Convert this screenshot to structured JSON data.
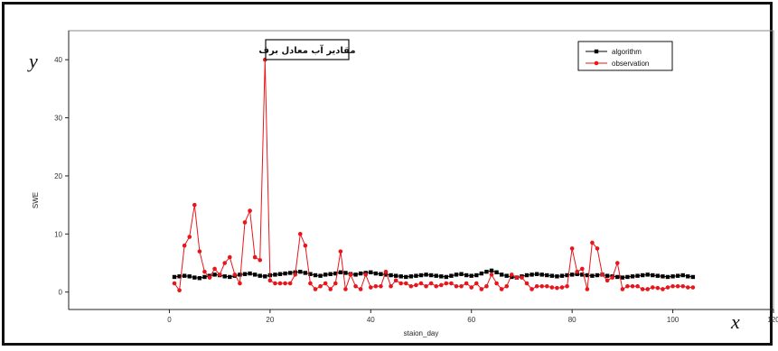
{
  "chart_data": {
    "type": "line",
    "title": "مقادیر آب معادل برف",
    "xlabel": "staion_day",
    "ylabel": "SWE",
    "x_letter": "x",
    "y_letter": "y",
    "xlim": [
      -20,
      120
    ],
    "ylim": [
      -3,
      45
    ],
    "x_ticks": [
      0,
      20,
      40,
      60,
      80,
      100,
      120
    ],
    "y_ticks": [
      0,
      10,
      20,
      30,
      40
    ],
    "grid": false,
    "legend_position": "top-right",
    "colors": {
      "algorithm": "#000000",
      "observation": "#e8161b"
    },
    "series": [
      {
        "name": "algorithm",
        "x": [
          1,
          2,
          3,
          4,
          5,
          6,
          7,
          8,
          9,
          10,
          11,
          12,
          13,
          14,
          15,
          16,
          17,
          18,
          19,
          20,
          21,
          22,
          23,
          24,
          25,
          26,
          27,
          28,
          29,
          30,
          31,
          32,
          33,
          34,
          35,
          36,
          37,
          38,
          39,
          40,
          41,
          42,
          43,
          44,
          45,
          46,
          47,
          48,
          49,
          50,
          51,
          52,
          53,
          54,
          55,
          56,
          57,
          58,
          59,
          60,
          61,
          62,
          63,
          64,
          65,
          66,
          67,
          68,
          69,
          70,
          71,
          72,
          73,
          74,
          75,
          76,
          77,
          78,
          79,
          80,
          81,
          82,
          83,
          84,
          85,
          86,
          87,
          88,
          89,
          90,
          91,
          92,
          93,
          94,
          95,
          96,
          97,
          98,
          99,
          100,
          101,
          102,
          103,
          104
        ],
        "y": [
          2.6,
          2.7,
          2.8,
          2.7,
          2.5,
          2.4,
          2.6,
          2.8,
          3.0,
          2.9,
          2.7,
          2.6,
          2.8,
          3.0,
          3.1,
          3.2,
          3.0,
          2.8,
          2.7,
          2.9,
          3.0,
          3.1,
          3.2,
          3.3,
          3.4,
          3.5,
          3.3,
          3.1,
          2.9,
          2.8,
          3.0,
          3.1,
          3.2,
          3.4,
          3.3,
          3.1,
          3.0,
          3.2,
          3.3,
          3.4,
          3.2,
          3.1,
          3.0,
          2.9,
          2.8,
          2.7,
          2.6,
          2.7,
          2.8,
          2.9,
          3.0,
          2.9,
          2.8,
          2.7,
          2.6,
          2.8,
          3.0,
          3.1,
          2.9,
          2.8,
          2.9,
          3.2,
          3.5,
          3.7,
          3.4,
          3.0,
          2.8,
          2.6,
          2.5,
          2.7,
          2.9,
          3.0,
          3.1,
          3.0,
          2.9,
          2.8,
          2.7,
          2.8,
          2.9,
          3.0,
          3.1,
          3.0,
          2.9,
          2.8,
          2.9,
          3.0,
          2.8,
          2.7,
          2.6,
          2.5,
          2.6,
          2.7,
          2.8,
          2.9,
          3.0,
          2.9,
          2.8,
          2.7,
          2.6,
          2.7,
          2.8,
          2.9,
          2.7,
          2.6
        ]
      },
      {
        "name": "observation",
        "x": [
          1,
          2,
          3,
          4,
          5,
          6,
          7,
          8,
          9,
          10,
          11,
          12,
          13,
          14,
          15,
          16,
          17,
          18,
          19,
          20,
          21,
          22,
          23,
          24,
          25,
          26,
          27,
          28,
          29,
          30,
          31,
          32,
          33,
          34,
          35,
          36,
          37,
          38,
          39,
          40,
          41,
          42,
          43,
          44,
          45,
          46,
          47,
          48,
          49,
          50,
          51,
          52,
          53,
          54,
          55,
          56,
          57,
          58,
          59,
          60,
          61,
          62,
          63,
          64,
          65,
          66,
          67,
          68,
          69,
          70,
          71,
          72,
          73,
          74,
          75,
          76,
          77,
          78,
          79,
          80,
          81,
          82,
          83,
          84,
          85,
          86,
          87,
          88,
          89,
          90,
          91,
          92,
          93,
          94,
          95,
          96,
          97,
          98,
          99,
          100,
          101,
          102,
          103,
          104
        ],
        "y": [
          1.5,
          0.3,
          8.0,
          9.5,
          15.0,
          7.0,
          3.5,
          2.5,
          4.0,
          3.0,
          5.0,
          6.0,
          3.0,
          1.5,
          12.0,
          14.0,
          6.0,
          5.5,
          40.0,
          2.0,
          1.5,
          1.5,
          1.5,
          1.5,
          3.0,
          10.0,
          8.0,
          1.5,
          0.5,
          1.0,
          1.5,
          0.5,
          1.5,
          7.0,
          0.5,
          3.0,
          1.0,
          0.5,
          3.0,
          0.8,
          1.0,
          1.0,
          3.5,
          1.0,
          2.0,
          1.5,
          1.5,
          1.0,
          1.2,
          1.5,
          1.0,
          1.5,
          1.0,
          1.2,
          1.5,
          1.5,
          1.0,
          1.0,
          1.5,
          0.8,
          1.5,
          0.5,
          1.0,
          3.0,
          1.5,
          0.5,
          1.0,
          3.0,
          2.5,
          2.5,
          1.5,
          0.5,
          1.0,
          1.0,
          1.0,
          0.8,
          0.7,
          0.8,
          1.0,
          7.5,
          3.5,
          4.0,
          0.5,
          8.5,
          7.5,
          3.0,
          2.0,
          2.5,
          5.0,
          0.5,
          1.0,
          1.0,
          1.0,
          0.5,
          0.5,
          0.8,
          0.7,
          0.5,
          0.8,
          1.0,
          1.0,
          1.0,
          0.8,
          0.8
        ]
      }
    ]
  }
}
